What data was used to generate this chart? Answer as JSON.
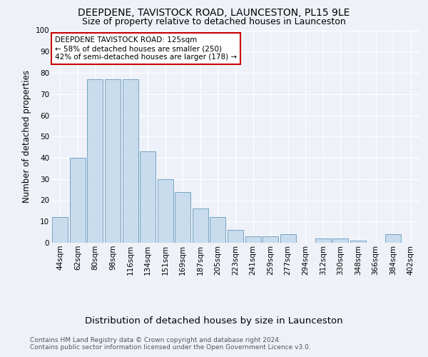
{
  "title": "DEEPDENE, TAVISTOCK ROAD, LAUNCESTON, PL15 9LE",
  "subtitle": "Size of property relative to detached houses in Launceston",
  "xlabel": "Distribution of detached houses by size in Launceston",
  "ylabel": "Number of detached properties",
  "categories": [
    "44sqm",
    "62sqm",
    "80sqm",
    "98sqm",
    "116sqm",
    "134sqm",
    "151sqm",
    "169sqm",
    "187sqm",
    "205sqm",
    "223sqm",
    "241sqm",
    "259sqm",
    "277sqm",
    "294sqm",
    "312sqm",
    "330sqm",
    "348sqm",
    "366sqm",
    "384sqm",
    "402sqm"
  ],
  "values": [
    12,
    40,
    77,
    77,
    77,
    43,
    30,
    24,
    16,
    12,
    6,
    3,
    3,
    4,
    0,
    2,
    2,
    1,
    0,
    4,
    0
  ],
  "bar_color": "#c8dced",
  "bar_edge_color": "#6699bb",
  "annotation_title": "DEEPDENE TAVISTOCK ROAD: 125sqm",
  "annotation_line1": "← 58% of detached houses are smaller (250)",
  "annotation_line2": "42% of semi-detached houses are larger (178) →",
  "annotation_box_color": "#cc0000",
  "ylim": [
    0,
    100
  ],
  "yticks": [
    0,
    10,
    20,
    30,
    40,
    50,
    60,
    70,
    80,
    90,
    100
  ],
  "footnote1": "Contains HM Land Registry data © Crown copyright and database right 2024.",
  "footnote2": "Contains public sector information licensed under the Open Government Licence v3.0.",
  "bg_color": "#eef2f8",
  "grid_color": "#ffffff",
  "title_fontsize": 10,
  "subtitle_fontsize": 9,
  "xlabel_fontsize": 9.5,
  "ylabel_fontsize": 8.5,
  "tick_fontsize": 7.5,
  "annotation_fontsize": 7.5,
  "footnote_fontsize": 6.5
}
